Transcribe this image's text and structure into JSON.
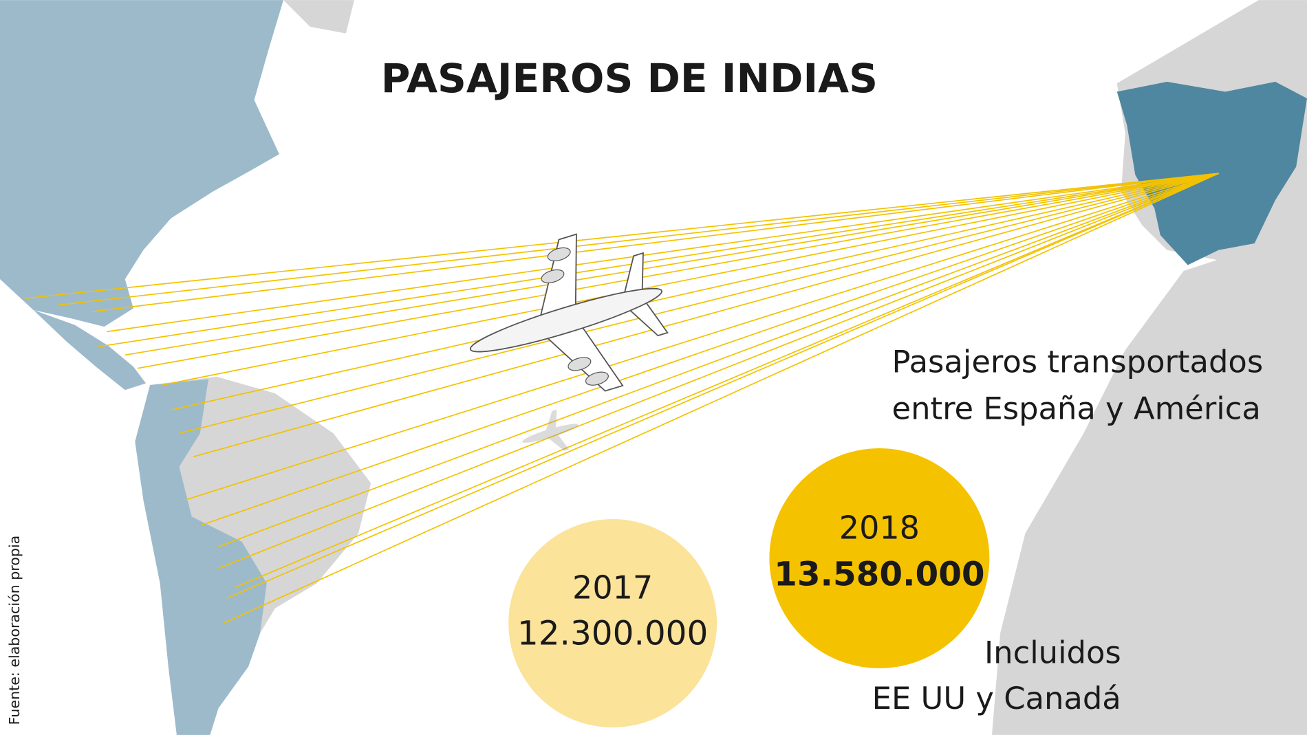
{
  "title": "PASAJEROS DE INDIAS",
  "subtitle": [
    "Pasajeros transportados",
    "entre España y América"
  ],
  "bubbles": [
    {
      "year": "2017",
      "value": "12.300.000"
    },
    {
      "year": "2018",
      "value": "13.580.000"
    }
  ],
  "note": [
    "Incluidos",
    "EE UU y Canadá"
  ],
  "source": "Fuente: elaboración propia"
}
